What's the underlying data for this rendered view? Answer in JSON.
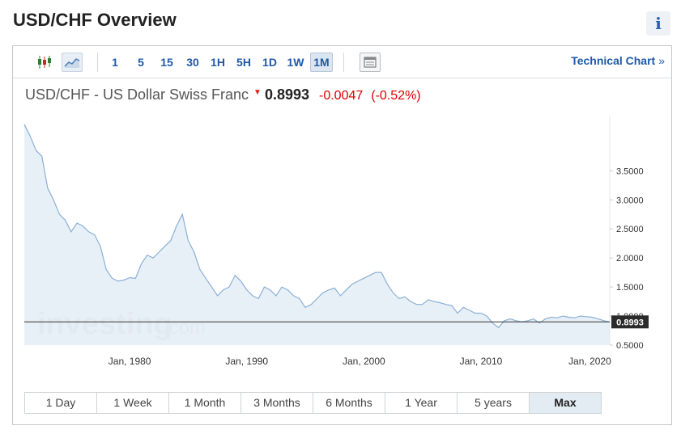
{
  "header": {
    "title": "USD/CHF Overview",
    "info_icon": "i"
  },
  "toolbar": {
    "chart_type_icons": [
      "candlestick-icon",
      "area-chart-icon"
    ],
    "timeframes": [
      "1",
      "5",
      "15",
      "30",
      "1H",
      "5H",
      "1D",
      "1W",
      "1M"
    ],
    "active_timeframe": "1M",
    "settings_icon": "chart-settings-icon",
    "technical_chart_label": "Technical Chart",
    "technical_chart_chevron": "»"
  },
  "quote": {
    "name": "USD/CHF - US Dollar Swiss Franc",
    "direction": "down",
    "price": "0.8993",
    "change": "-0.0047",
    "change_pct": "(-0.52%)"
  },
  "watermark": {
    "brand": "investing",
    "suffix": ".com"
  },
  "colors": {
    "line": "#8aafd6",
    "fill": "#e6eef6",
    "negative": "#d90000",
    "link": "#1f59a8",
    "last_price_bg": "#2b2b2b"
  },
  "chart_data": {
    "type": "area",
    "title": "USD/CHF - US Dollar Swiss Franc",
    "xlabel": "",
    "ylabel": "",
    "x_ticks": [
      "Jan, 1980",
      "Jan, 1990",
      "Jan, 2000",
      "Jan, 2010",
      "Jan, 2020"
    ],
    "y_ticks": [
      "0.5000",
      "1.0000",
      "1.5000",
      "2.0000",
      "2.5000",
      "3.0000",
      "3.5000"
    ],
    "ylim": [
      0.5,
      4.0
    ],
    "xlim": [
      1971.0,
      2021.0
    ],
    "last_price_label": "0.8993",
    "grid": false,
    "series": [
      {
        "x": [
          1971.0,
          1971.5,
          1972.0,
          1972.5,
          1973.0,
          1973.5,
          1974.0,
          1974.5,
          1975.0,
          1975.5,
          1976.0,
          1976.5,
          1977.0,
          1977.5,
          1978.0,
          1978.5,
          1979.0,
          1979.5,
          1980.0,
          1980.5,
          1981.0,
          1981.5,
          1982.0,
          1982.5,
          1983.0,
          1983.5,
          1984.0,
          1984.5,
          1985.0,
          1985.5,
          1986.0,
          1986.5,
          1987.0,
          1987.5,
          1988.0,
          1988.5,
          1989.0,
          1989.5,
          1990.0,
          1990.5,
          1991.0,
          1991.5,
          1992.0,
          1992.5,
          1993.0,
          1993.5,
          1994.0,
          1994.5,
          1995.0,
          1995.5,
          1996.0,
          1996.5,
          1997.0,
          1997.5,
          1998.0,
          1998.5,
          1999.0,
          1999.5,
          2000.0,
          2000.5,
          2001.0,
          2001.5,
          2002.0,
          2002.5,
          2003.0,
          2003.5,
          2004.0,
          2004.5,
          2005.0,
          2005.5,
          2006.0,
          2006.5,
          2007.0,
          2007.5,
          2008.0,
          2008.5,
          2009.0,
          2009.5,
          2010.0,
          2010.5,
          2011.0,
          2011.5,
          2012.0,
          2012.5,
          2013.0,
          2013.5,
          2014.0,
          2014.5,
          2015.0,
          2015.5,
          2016.0,
          2016.5,
          2017.0,
          2017.5,
          2018.0,
          2018.5,
          2019.0,
          2019.5,
          2020.0,
          2020.5,
          2021.0
        ],
        "y": [
          4.3,
          4.1,
          3.85,
          3.75,
          3.2,
          3.0,
          2.75,
          2.65,
          2.45,
          2.6,
          2.55,
          2.45,
          2.4,
          2.2,
          1.8,
          1.65,
          1.6,
          1.62,
          1.66,
          1.65,
          1.9,
          2.05,
          2.0,
          2.1,
          2.2,
          2.3,
          2.55,
          2.75,
          2.3,
          2.1,
          1.8,
          1.65,
          1.5,
          1.35,
          1.45,
          1.5,
          1.7,
          1.6,
          1.45,
          1.35,
          1.3,
          1.5,
          1.45,
          1.35,
          1.5,
          1.45,
          1.35,
          1.3,
          1.15,
          1.2,
          1.3,
          1.4,
          1.45,
          1.48,
          1.35,
          1.45,
          1.55,
          1.6,
          1.65,
          1.7,
          1.75,
          1.75,
          1.55,
          1.4,
          1.3,
          1.33,
          1.25,
          1.2,
          1.2,
          1.28,
          1.25,
          1.23,
          1.2,
          1.18,
          1.05,
          1.15,
          1.1,
          1.05,
          1.05,
          1.0,
          0.88,
          0.8,
          0.92,
          0.95,
          0.92,
          0.9,
          0.92,
          0.95,
          0.88,
          0.95,
          0.98,
          0.97,
          1.0,
          0.98,
          0.97,
          1.0,
          0.99,
          0.98,
          0.95,
          0.92,
          0.8993
        ]
      }
    ]
  },
  "ranges": {
    "buttons": [
      "1 Day",
      "1 Week",
      "1 Month",
      "3 Months",
      "6 Months",
      "1 Year",
      "5 years",
      "Max"
    ],
    "active": "Max"
  }
}
